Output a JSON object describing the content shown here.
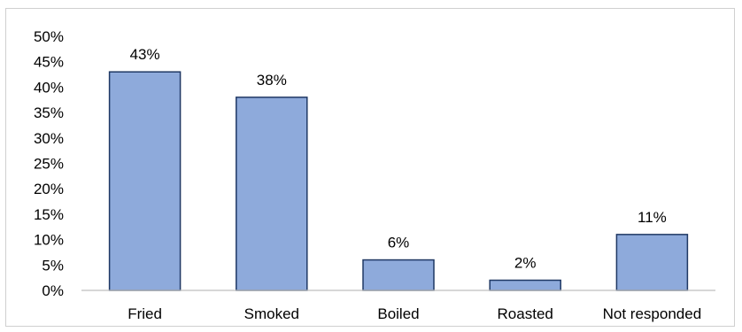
{
  "chart_data": {
    "type": "bar",
    "title": "",
    "xlabel": "",
    "ylabel": "",
    "categories": [
      "Fried",
      "Smoked",
      "Boiled",
      "Roasted",
      "Not responded"
    ],
    "values": [
      43,
      38,
      6,
      2,
      11
    ],
    "data_labels": [
      "43%",
      "38%",
      "6%",
      "2%",
      "11%"
    ],
    "ylim": [
      0,
      50
    ],
    "y_ticks": [
      0,
      5,
      10,
      15,
      20,
      25,
      30,
      35,
      40,
      45,
      50
    ],
    "y_tick_labels": [
      "0%",
      "5%",
      "10%",
      "15%",
      "20%",
      "25%",
      "30%",
      "35%",
      "40%",
      "45%",
      "50%"
    ],
    "grid": false,
    "legend": "none",
    "colors": {
      "bar_fill": "#8eaadb",
      "bar_stroke": "#1f3864",
      "axis": "#bfbfbf",
      "frame": "#d0d0d0"
    }
  }
}
